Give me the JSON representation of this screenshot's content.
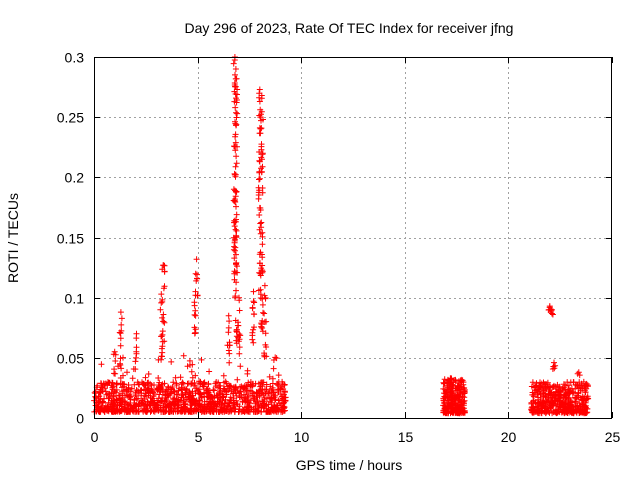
{
  "chart_data": {
    "type": "scatter",
    "title": "Day 296 of 2023, Rate Of TEC Index for receiver jfng",
    "xlabel": "GPS time / hours",
    "ylabel": "ROTI / TECUs",
    "xlim": [
      0,
      25
    ],
    "ylim": [
      0,
      0.3
    ],
    "xticks": [
      0,
      5,
      10,
      15,
      20,
      25
    ],
    "yticks": [
      0,
      0.05,
      0.1,
      0.15,
      0.2,
      0.25,
      0.3
    ],
    "grid": true,
    "marker": "+",
    "color": "#ff0000",
    "clusters": [
      {
        "x_range": [
          0,
          9.25
        ],
        "base_range": [
          0.005,
          0.03
        ],
        "density": 1100
      },
      {
        "x_range": [
          16.85,
          17.9
        ],
        "base_range": [
          0.004,
          0.033
        ],
        "density": 260
      },
      {
        "x_range": [
          21.1,
          23.85
        ],
        "base_range": [
          0.004,
          0.03
        ],
        "density": 420
      }
    ],
    "spikes": [
      {
        "x": 1.0,
        "y": [
          0.03,
          0.055
        ]
      },
      {
        "x": 1.3,
        "y": [
          0.04,
          0.088
        ]
      },
      {
        "x": 2.05,
        "y": [
          0.04,
          0.07
        ]
      },
      {
        "x": 3.25,
        "y": [
          0.05,
          0.103
        ]
      },
      {
        "x": 3.35,
        "y": [
          0.06,
          0.127
        ]
      },
      {
        "x": 4.9,
        "y": [
          0.06,
          0.105
        ]
      },
      {
        "x": 4.95,
        "y": [
          0.1,
          0.132
        ]
      },
      {
        "x": 6.5,
        "y": [
          0.04,
          0.085
        ]
      },
      {
        "x": 6.8,
        "y": [
          0.1,
          0.3
        ]
      },
      {
        "x": 6.85,
        "y": [
          0.06,
          0.29
        ]
      },
      {
        "x": 7.0,
        "y": [
          0.05,
          0.1
        ]
      },
      {
        "x": 7.7,
        "y": [
          0.05,
          0.105
        ]
      },
      {
        "x": 8.0,
        "y": [
          0.1,
          0.273
        ]
      },
      {
        "x": 8.1,
        "y": [
          0.07,
          0.268
        ]
      },
      {
        "x": 8.25,
        "y": [
          0.05,
          0.11
        ]
      },
      {
        "x": 17.2,
        "y": [
          0.02,
          0.033
        ]
      },
      {
        "x": 22.0,
        "y": [
          0.088,
          0.093
        ]
      },
      {
        "x": 22.1,
        "y": [
          0.086,
          0.09
        ]
      },
      {
        "x": 22.2,
        "y": [
          0.04,
          0.046
        ]
      },
      {
        "x": 23.4,
        "y": [
          0.025,
          0.038
        ]
      }
    ]
  }
}
